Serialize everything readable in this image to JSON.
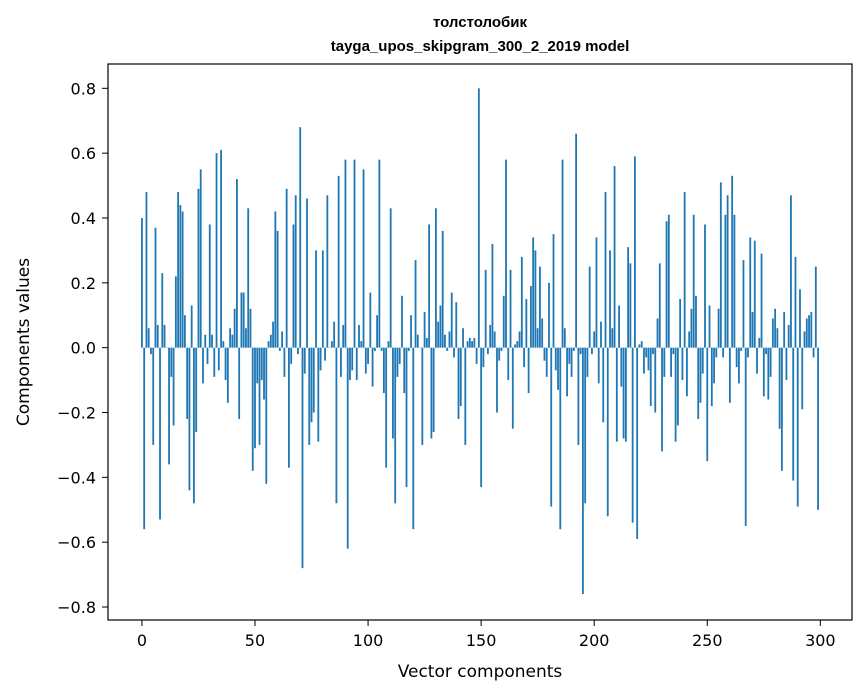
{
  "chart_data": {
    "type": "bar",
    "title": "толстолобик",
    "subtitle": "tayga_upos_skipgram_300_2_2019 model",
    "xlabel": "Vector components",
    "ylabel": "Components values",
    "xlim": [
      -15,
      314
    ],
    "ylim": [
      -0.84,
      0.875
    ],
    "xticks": [
      0,
      50,
      100,
      150,
      200,
      250,
      300
    ],
    "xtick_labels": [
      "0",
      "50",
      "100",
      "150",
      "200",
      "250",
      "300"
    ],
    "yticks": [
      -0.8,
      -0.6,
      -0.4,
      -0.2,
      0.0,
      0.2,
      0.4,
      0.6,
      0.8
    ],
    "ytick_labels": [
      "−0.8",
      "−0.6",
      "−0.4",
      "−0.2",
      "0.0",
      "0.2",
      "0.4",
      "0.6",
      "0.8"
    ],
    "bar_color": "#1f77b4",
    "grid": false,
    "values": [
      0.4,
      -0.56,
      0.48,
      0.06,
      -0.02,
      -0.3,
      0.37,
      0.07,
      -0.53,
      0.23,
      0.07,
      0.0,
      -0.36,
      -0.09,
      -0.24,
      0.22,
      0.48,
      0.44,
      0.42,
      0.1,
      -0.22,
      -0.44,
      0.13,
      -0.48,
      -0.26,
      0.49,
      0.55,
      -0.11,
      0.04,
      -0.05,
      0.38,
      0.04,
      -0.09,
      0.6,
      -0.07,
      0.61,
      0.02,
      -0.1,
      -0.17,
      0.06,
      0.04,
      0.12,
      0.52,
      -0.22,
      0.17,
      0.17,
      0.06,
      0.43,
      0.12,
      -0.38,
      -0.31,
      -0.11,
      -0.3,
      -0.1,
      -0.16,
      -0.42,
      0.02,
      0.04,
      0.08,
      0.42,
      0.36,
      -0.01,
      0.05,
      -0.09,
      0.49,
      -0.37,
      -0.05,
      0.38,
      0.47,
      -0.02,
      0.68,
      -0.68,
      -0.08,
      0.46,
      -0.3,
      -0.23,
      -0.2,
      0.3,
      -0.29,
      -0.07,
      0.3,
      -0.04,
      0.47,
      0.0,
      0.02,
      0.08,
      -0.48,
      0.53,
      -0.09,
      0.07,
      0.58,
      -0.62,
      -0.1,
      -0.07,
      0.58,
      -0.1,
      0.07,
      0.02,
      0.55,
      -0.08,
      -0.05,
      0.17,
      -0.12,
      -0.01,
      0.1,
      0.58,
      -0.01,
      -0.14,
      -0.37,
      0.02,
      0.43,
      -0.28,
      -0.48,
      -0.09,
      -0.05,
      0.16,
      -0.14,
      -0.43,
      -0.01,
      0.1,
      -0.56,
      0.27,
      0.04,
      0.0,
      -0.3,
      0.11,
      0.03,
      0.38,
      -0.28,
      -0.26,
      0.43,
      0.08,
      0.13,
      0.36,
      0.04,
      -0.01,
      0.05,
      0.17,
      -0.03,
      0.14,
      -0.22,
      -0.18,
      0.06,
      -0.3,
      0.02,
      0.03,
      0.02,
      0.03,
      -0.05,
      0.8,
      -0.43,
      -0.06,
      0.24,
      -0.02,
      0.07,
      0.32,
      0.05,
      -0.2,
      -0.04,
      -0.01,
      0.16,
      0.58,
      -0.1,
      0.24,
      -0.25,
      0.01,
      0.02,
      0.05,
      0.28,
      -0.06,
      0.15,
      -0.14,
      0.19,
      0.34,
      0.3,
      0.06,
      0.25,
      0.09,
      -0.04,
      -0.09,
      0.2,
      -0.49,
      0.35,
      -0.07,
      -0.13,
      -0.56,
      0.58,
      0.06,
      -0.15,
      -0.05,
      -0.09,
      -0.01,
      0.66,
      -0.3,
      -0.02,
      -0.76,
      -0.48,
      -0.09,
      0.25,
      -0.02,
      0.05,
      0.34,
      -0.11,
      0.08,
      -0.23,
      0.48,
      -0.52,
      0.3,
      0.06,
      0.56,
      -0.29,
      0.13,
      -0.12,
      -0.28,
      -0.29,
      0.31,
      0.26,
      -0.54,
      0.59,
      -0.59,
      0.01,
      0.02,
      -0.08,
      -0.03,
      -0.07,
      -0.18,
      -0.02,
      -0.2,
      0.09,
      0.26,
      -0.32,
      -0.09,
      0.39,
      0.41,
      -0.09,
      -0.02,
      -0.29,
      -0.24,
      0.15,
      -0.1,
      0.48,
      -0.15,
      0.05,
      0.12,
      0.41,
      0.16,
      -0.22,
      -0.17,
      -0.08,
      0.38,
      -0.35,
      0.13,
      -0.18,
      -0.11,
      -0.03,
      0.12,
      0.51,
      -0.03,
      0.41,
      0.47,
      -0.17,
      0.53,
      0.41,
      -0.06,
      -0.11,
      -0.01,
      0.27,
      -0.55,
      -0.03,
      0.34,
      0.11,
      0.33,
      -0.08,
      0.03,
      0.29,
      -0.15,
      -0.02,
      -0.16,
      -0.09,
      0.09,
      0.12,
      0.06,
      -0.25,
      -0.38,
      0.11,
      -0.1,
      0.07,
      0.47,
      -0.41,
      0.28,
      -0.49,
      0.18,
      -0.19,
      0.05,
      0.09,
      0.1,
      0.11,
      -0.03,
      0.25,
      -0.5
    ]
  }
}
